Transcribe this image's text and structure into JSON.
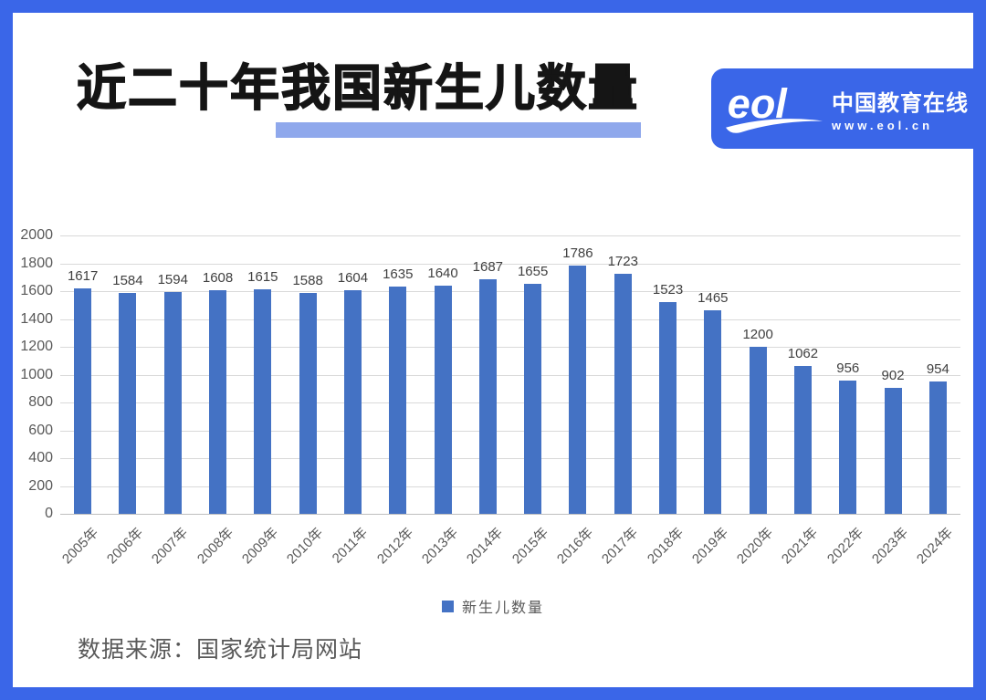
{
  "header": {
    "title": "近二十年我国新生儿数量"
  },
  "logo": {
    "mark": "eol",
    "brand": "中国教育在线",
    "url": "www.eol.cn"
  },
  "chart_data": {
    "type": "bar",
    "title": "",
    "categories": [
      "2005年",
      "2006年",
      "2007年",
      "2008年",
      "2009年",
      "2010年",
      "2011年",
      "2012年",
      "2013年",
      "2014年",
      "2015年",
      "2016年",
      "2017年",
      "2018年",
      "2019年",
      "2020年",
      "2021年",
      "2022年",
      "2023年",
      "2024年"
    ],
    "values": [
      1617,
      1584,
      1594,
      1608,
      1615,
      1588,
      1604,
      1635,
      1640,
      1687,
      1655,
      1786,
      1723,
      1523,
      1465,
      1200,
      1062,
      956,
      902,
      954
    ],
    "legend": "新生儿数量",
    "xlabel": "",
    "ylabel": "",
    "ylim": [
      0,
      2000
    ],
    "yticks": [
      0,
      200,
      400,
      600,
      800,
      1000,
      1200,
      1400,
      1600,
      1800,
      2000
    ],
    "grid": true,
    "legend_position": "bottom"
  },
  "footer": {
    "source": "数据来源：国家统计局网站"
  },
  "colors": {
    "frame": "#3A66E8",
    "bar": "#4472C4",
    "title_highlight": "#8FA8EC",
    "gridline": "#D9D9D9",
    "axis_line": "#BFBFBF",
    "data_label": "#404040",
    "tick_label": "#595959",
    "logo_text": "#FFFFFF"
  }
}
